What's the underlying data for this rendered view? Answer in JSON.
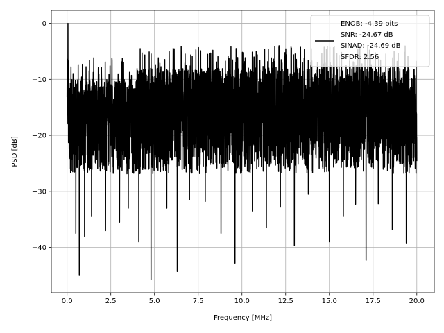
{
  "chart_data": {
    "type": "line",
    "xlabel": "Frequency [MHz]",
    "ylabel": "PSD [dB]",
    "xlim": [
      -0.9,
      21.0
    ],
    "ylim": [
      -48.1,
      2.3
    ],
    "xticks": [
      0.0,
      2.5,
      5.0,
      7.5,
      10.0,
      12.5,
      15.0,
      17.5,
      20.0
    ],
    "xtick_labels": [
      "0.0",
      "2.5",
      "5.0",
      "7.5",
      "10.0",
      "12.5",
      "15.0",
      "17.5",
      "20.0"
    ],
    "yticks": [
      0,
      -10,
      -20,
      -30,
      -40
    ],
    "ytick_labels": [
      "0",
      "−10",
      "−20",
      "−30",
      "−40"
    ],
    "grid": true,
    "legend_position": "top-right",
    "series": [
      {
        "color": "#000000",
        "x_start": 0.0,
        "x_end": 20.0,
        "peak": {
          "x": 0.05,
          "y": 0.0
        },
        "typical_upper": -8,
        "typical_lower": -27,
        "deep_nulls": [
          {
            "x": 0.5,
            "y": -37.5
          },
          {
            "x": 0.7,
            "y": -45.0
          },
          {
            "x": 1.0,
            "y": -38.0
          },
          {
            "x": 1.4,
            "y": -34.5
          },
          {
            "x": 2.2,
            "y": -37.0
          },
          {
            "x": 3.0,
            "y": -35.5
          },
          {
            "x": 3.5,
            "y": -33.0
          },
          {
            "x": 4.1,
            "y": -39.0
          },
          {
            "x": 4.8,
            "y": -45.8
          },
          {
            "x": 5.7,
            "y": -33.0
          },
          {
            "x": 6.3,
            "y": -44.3
          },
          {
            "x": 7.0,
            "y": -31.5
          },
          {
            "x": 7.9,
            "y": -31.8
          },
          {
            "x": 8.8,
            "y": -37.5
          },
          {
            "x": 9.6,
            "y": -42.8
          },
          {
            "x": 10.6,
            "y": -33.5
          },
          {
            "x": 11.4,
            "y": -36.5
          },
          {
            "x": 12.2,
            "y": -32.8
          },
          {
            "x": 13.0,
            "y": -39.7
          },
          {
            "x": 13.8,
            "y": -30.5
          },
          {
            "x": 15.0,
            "y": -39.0
          },
          {
            "x": 15.8,
            "y": -34.5
          },
          {
            "x": 16.5,
            "y": -32.3
          },
          {
            "x": 17.1,
            "y": -42.3
          },
          {
            "x": 17.8,
            "y": -32.2
          },
          {
            "x": 18.6,
            "y": -36.8
          },
          {
            "x": 19.4,
            "y": -39.2
          }
        ]
      }
    ],
    "legend": {
      "lines": [
        "ENOB: -4.39 bits",
        "SNR: -24.67 dB",
        "SINAD: -24.69 dB",
        "SFDR: 2.56"
      ]
    }
  }
}
